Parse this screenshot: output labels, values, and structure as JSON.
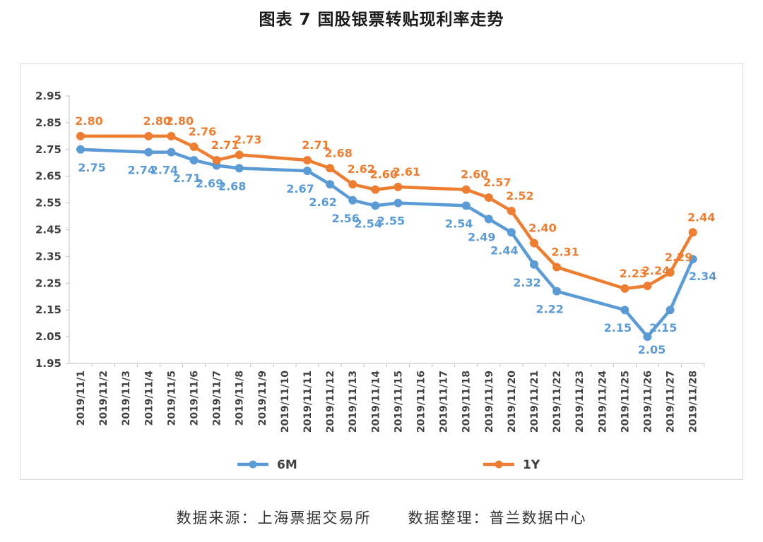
{
  "title": "图表 7  国股银票转贴现利率走势",
  "source": {
    "origin": "数据来源：上海票据交易所",
    "compiled": "数据整理：普兰数据中心"
  },
  "chart_data": {
    "type": "line",
    "categories": [
      "2019/11/1",
      "2019/11/2",
      "2019/11/3",
      "2019/11/4",
      "2019/11/5",
      "2019/11/6",
      "2019/11/7",
      "2019/11/8",
      "2019/11/9",
      "2019/11/10",
      "2019/11/11",
      "2019/11/12",
      "2019/11/13",
      "2019/11/14",
      "2019/11/15",
      "2019/11/16",
      "2019/11/17",
      "2019/11/18",
      "2019/11/19",
      "2019/11/20",
      "2019/11/21",
      "2019/11/22",
      "2019/11/23",
      "2019/11/24",
      "2019/11/25",
      "2019/11/26",
      "2019/11/27",
      "2019/11/28"
    ],
    "yticks": [
      "2.95",
      "2.85",
      "2.75",
      "2.65",
      "2.55",
      "2.45",
      "2.35",
      "2.25",
      "2.15",
      "2.05",
      "1.95"
    ],
    "ylim": [
      1.95,
      2.95
    ],
    "legend_position": "bottom",
    "series": [
      {
        "name": "6M",
        "color": "#5b9bd5",
        "values": [
          2.75,
          null,
          null,
          2.74,
          2.74,
          2.71,
          2.69,
          2.68,
          null,
          null,
          2.67,
          2.62,
          2.56,
          2.54,
          2.55,
          null,
          null,
          2.54,
          2.49,
          2.44,
          2.32,
          2.22,
          null,
          null,
          2.15,
          2.05,
          2.15,
          2.34
        ],
        "labels": [
          "2.75",
          null,
          null,
          "2.74",
          "2.74",
          "2.71",
          "2.69",
          "2.68",
          null,
          null,
          "2.67",
          "2.62",
          "2.56",
          "2.54",
          "2.55",
          null,
          null,
          "2.54",
          "2.49",
          "2.44",
          "2.32",
          "2.22",
          null,
          null,
          "2.15",
          "2.05",
          "2.15",
          "2.34"
        ]
      },
      {
        "name": "1Y",
        "color": "#ed7d31",
        "values": [
          2.8,
          null,
          null,
          2.8,
          2.8,
          2.76,
          2.71,
          2.73,
          null,
          null,
          2.71,
          2.68,
          2.62,
          2.6,
          2.61,
          null,
          null,
          2.6,
          2.57,
          2.52,
          2.4,
          2.31,
          null,
          null,
          2.23,
          2.24,
          2.29,
          2.44
        ],
        "labels": [
          "2.80",
          null,
          null,
          "2.80",
          "2.80",
          "2.76",
          "2.71",
          "2.73",
          null,
          null,
          "2.71",
          "2.68",
          "2.62",
          "2.60",
          "2.61",
          null,
          null,
          "2.60",
          "2.57",
          "2.52",
          "2.40",
          "2.31",
          null,
          null,
          "2.23",
          "2.24",
          "2.29",
          "2.44"
        ]
      }
    ]
  }
}
